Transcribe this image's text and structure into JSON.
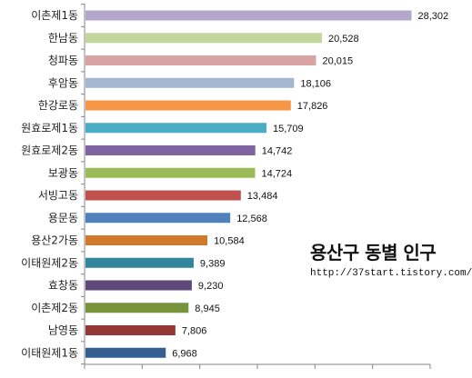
{
  "chart_data": {
    "type": "bar",
    "orientation": "horizontal",
    "title": "용산구 동별 인구",
    "subtitle": "http://37start.tistory.com/",
    "xlabel": "",
    "ylabel": "",
    "xlim": [
      0,
      30000
    ],
    "grid": false,
    "legend": "none",
    "categories": [
      "이촌제1동",
      "한남동",
      "청파동",
      "후암동",
      "한강로동",
      "원효로제1동",
      "원효로제2동",
      "보광동",
      "서빙고동",
      "용문동",
      "용산2가동",
      "이태원제2동",
      "효창동",
      "이촌제2동",
      "남영동",
      "이태원제1동"
    ],
    "values": [
      28302,
      20528,
      20015,
      18106,
      17826,
      15709,
      14742,
      14724,
      13484,
      12568,
      10584,
      9389,
      9230,
      8945,
      7806,
      6968
    ],
    "value_labels": [
      "28,302",
      "20,528",
      "20,015",
      "18,106",
      "17,826",
      "15,709",
      "14,742",
      "14,724",
      "13,484",
      "12,568",
      "10,584",
      "9,389",
      "9,230",
      "8,945",
      "7,806",
      "6,968"
    ],
    "colors": [
      "#b3a8c9",
      "#c3d69b",
      "#d9a3a3",
      "#a3b6d2",
      "#f79646",
      "#4bacc6",
      "#8064a2",
      "#9bbb59",
      "#c0504d",
      "#4f81bd",
      "#d07a2e",
      "#31859c",
      "#60497a",
      "#77933c",
      "#953735",
      "#365f91"
    ]
  }
}
